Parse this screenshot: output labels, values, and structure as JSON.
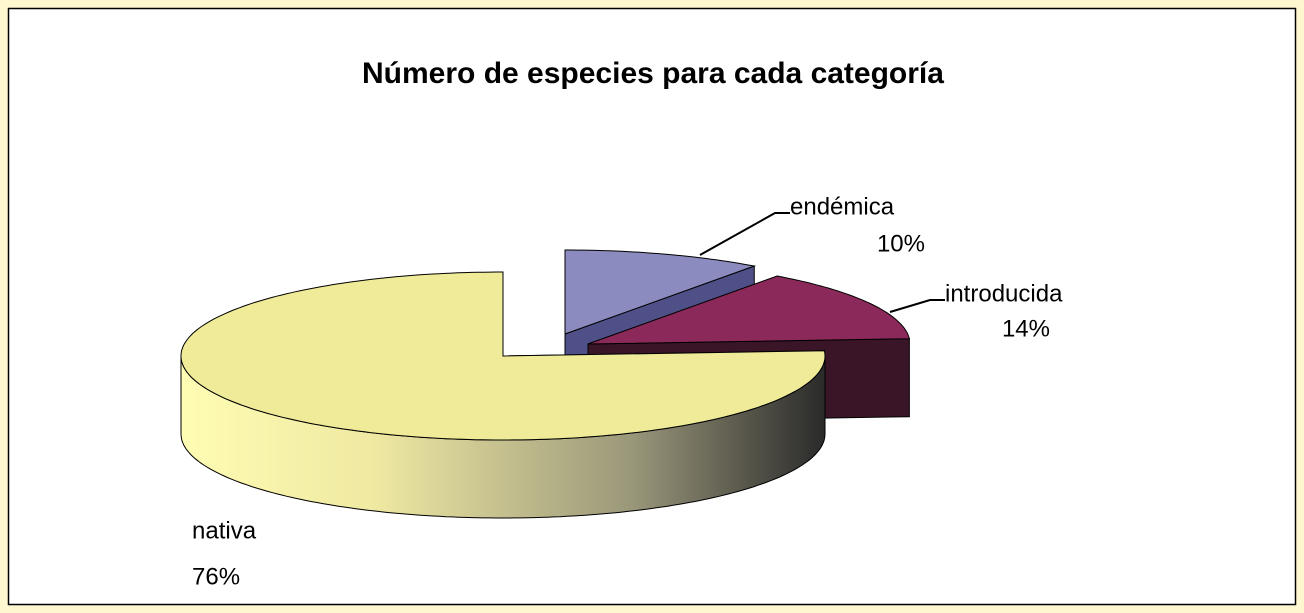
{
  "chart_data": {
    "type": "pie3d",
    "title": "Número de especies para cada categoría",
    "categories": [
      "endémica",
      "introducida",
      "nativa"
    ],
    "values": [
      10,
      14,
      76
    ],
    "value_labels": [
      "10%",
      "14%",
      "76%"
    ],
    "colors": [
      "#8b8bc0",
      "#8b2a5a",
      "#f0eb98"
    ]
  }
}
